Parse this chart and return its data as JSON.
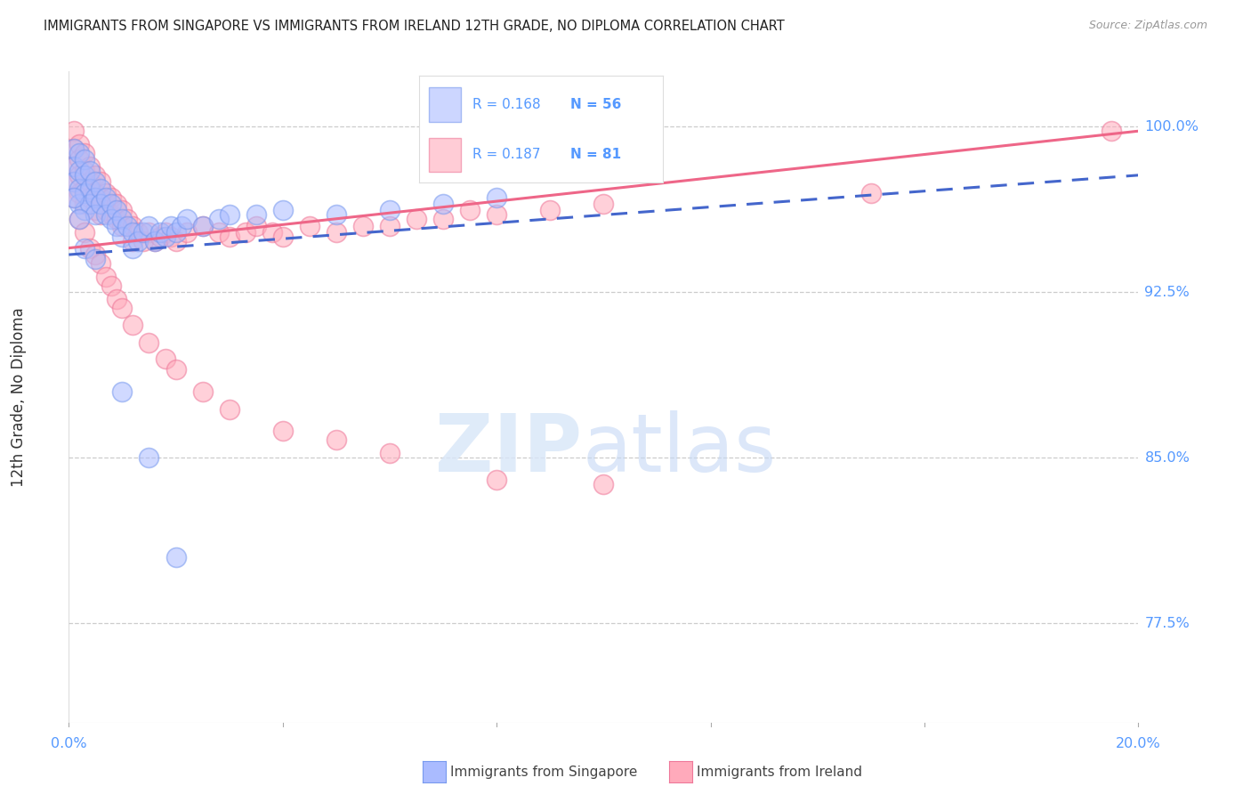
{
  "title": "IMMIGRANTS FROM SINGAPORE VS IMMIGRANTS FROM IRELAND 12TH GRADE, NO DIPLOMA CORRELATION CHART",
  "source": "Source: ZipAtlas.com",
  "ylabel": "12th Grade, No Diploma",
  "yticks_pct": [
    77.5,
    85.0,
    92.5,
    100.0
  ],
  "R_singapore": 0.168,
  "N_singapore": 56,
  "R_ireland": 0.187,
  "N_ireland": 81,
  "color_sg_fill": "#aabbff",
  "color_sg_edge": "#7799ee",
  "color_ir_fill": "#ffaabb",
  "color_ir_edge": "#ee7799",
  "color_sg_line": "#4466cc",
  "color_ir_line": "#ee6688",
  "color_axis": "#5599ff",
  "xmin": 0.0,
  "xmax": 0.2,
  "ymin": 0.73,
  "ymax": 1.025,
  "sg_x": [
    0.001,
    0.001,
    0.001,
    0.002,
    0.002,
    0.002,
    0.002,
    0.003,
    0.003,
    0.003,
    0.003,
    0.004,
    0.004,
    0.004,
    0.005,
    0.005,
    0.005,
    0.006,
    0.006,
    0.007,
    0.007,
    0.008,
    0.008,
    0.009,
    0.009,
    0.01,
    0.01,
    0.011,
    0.012,
    0.012,
    0.013,
    0.014,
    0.015,
    0.016,
    0.017,
    0.018,
    0.019,
    0.02,
    0.021,
    0.022,
    0.025,
    0.028,
    0.03,
    0.035,
    0.04,
    0.05,
    0.06,
    0.07,
    0.08,
    0.001,
    0.002,
    0.003,
    0.005,
    0.01,
    0.015,
    0.02
  ],
  "sg_y": [
    0.99,
    0.982,
    0.975,
    0.988,
    0.98,
    0.972,
    0.965,
    0.985,
    0.978,
    0.97,
    0.962,
    0.98,
    0.972,
    0.965,
    0.975,
    0.968,
    0.96,
    0.972,
    0.965,
    0.968,
    0.96,
    0.965,
    0.958,
    0.962,
    0.955,
    0.958,
    0.95,
    0.955,
    0.952,
    0.945,
    0.948,
    0.952,
    0.955,
    0.948,
    0.952,
    0.95,
    0.955,
    0.952,
    0.955,
    0.958,
    0.955,
    0.958,
    0.96,
    0.96,
    0.962,
    0.96,
    0.962,
    0.965,
    0.968,
    0.968,
    0.958,
    0.945,
    0.94,
    0.88,
    0.85,
    0.805
  ],
  "ir_x": [
    0.001,
    0.001,
    0.001,
    0.001,
    0.002,
    0.002,
    0.002,
    0.002,
    0.003,
    0.003,
    0.003,
    0.003,
    0.004,
    0.004,
    0.004,
    0.005,
    0.005,
    0.005,
    0.006,
    0.006,
    0.006,
    0.007,
    0.007,
    0.008,
    0.008,
    0.009,
    0.009,
    0.01,
    0.01,
    0.011,
    0.012,
    0.012,
    0.013,
    0.014,
    0.015,
    0.016,
    0.017,
    0.018,
    0.019,
    0.02,
    0.022,
    0.025,
    0.028,
    0.03,
    0.033,
    0.035,
    0.038,
    0.04,
    0.045,
    0.05,
    0.055,
    0.06,
    0.065,
    0.07,
    0.075,
    0.08,
    0.09,
    0.1,
    0.15,
    0.195,
    0.001,
    0.002,
    0.003,
    0.004,
    0.005,
    0.006,
    0.007,
    0.008,
    0.009,
    0.01,
    0.012,
    0.015,
    0.018,
    0.02,
    0.025,
    0.03,
    0.04,
    0.05,
    0.06,
    0.08,
    0.1
  ],
  "ir_y": [
    0.998,
    0.99,
    0.982,
    0.975,
    0.992,
    0.985,
    0.978,
    0.97,
    0.988,
    0.98,
    0.972,
    0.965,
    0.982,
    0.975,
    0.968,
    0.978,
    0.97,
    0.962,
    0.975,
    0.968,
    0.96,
    0.97,
    0.962,
    0.968,
    0.96,
    0.965,
    0.958,
    0.962,
    0.955,
    0.958,
    0.955,
    0.948,
    0.952,
    0.948,
    0.952,
    0.948,
    0.95,
    0.952,
    0.95,
    0.948,
    0.952,
    0.955,
    0.952,
    0.95,
    0.952,
    0.955,
    0.952,
    0.95,
    0.955,
    0.952,
    0.955,
    0.955,
    0.958,
    0.958,
    0.962,
    0.96,
    0.962,
    0.965,
    0.97,
    0.998,
    0.968,
    0.958,
    0.952,
    0.945,
    0.942,
    0.938,
    0.932,
    0.928,
    0.922,
    0.918,
    0.91,
    0.902,
    0.895,
    0.89,
    0.88,
    0.872,
    0.862,
    0.858,
    0.852,
    0.84,
    0.838
  ]
}
